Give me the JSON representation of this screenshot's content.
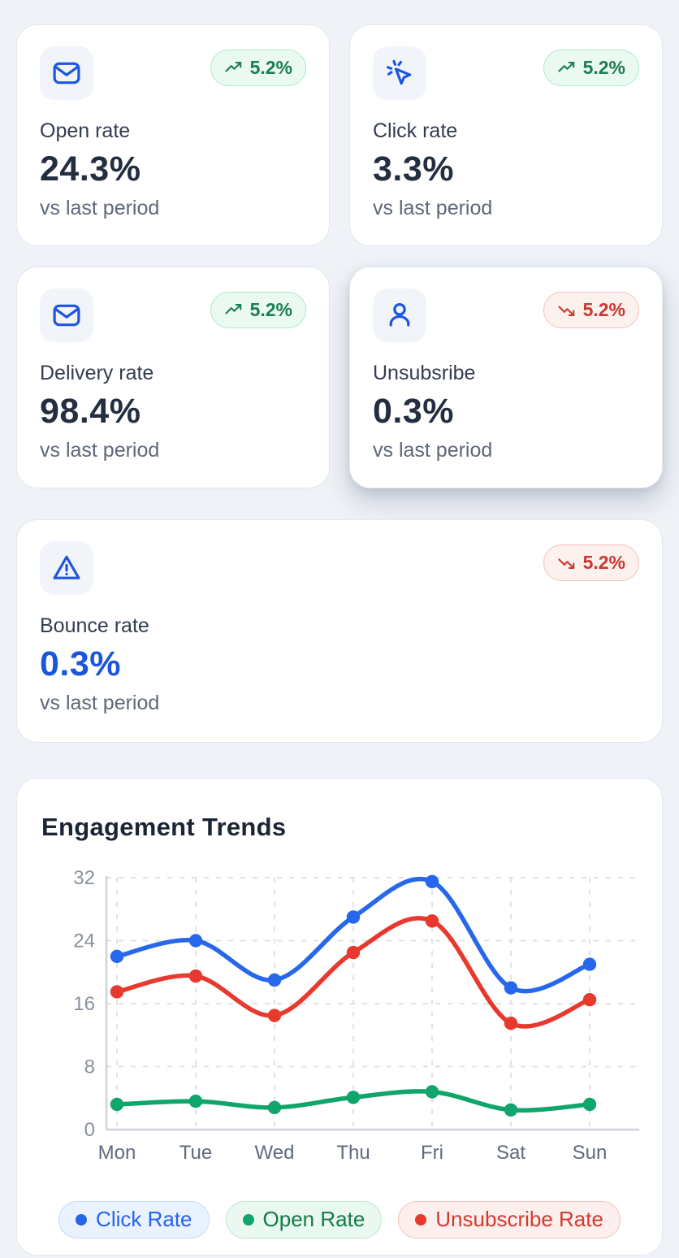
{
  "cards": [
    {
      "label": "Open rate",
      "value": "24.3%",
      "sub": "vs last period",
      "badge": "5.2%",
      "trend": "up"
    },
    {
      "label": "Click rate",
      "value": "3.3%",
      "sub": "vs last period",
      "badge": "5.2%",
      "trend": "up"
    },
    {
      "label": "Delivery rate",
      "value": "98.4%",
      "sub": "vs last period",
      "badge": "5.2%",
      "trend": "up"
    },
    {
      "label": "Unsubsribe",
      "value": "0.3%",
      "sub": "vs last period",
      "badge": "5.2%",
      "trend": "down"
    },
    {
      "label": "Bounce rate",
      "value": "0.3%",
      "sub": "vs last period",
      "badge": "5.2%",
      "trend": "down"
    }
  ],
  "chart": {
    "title": "Engagement Trends",
    "legend": [
      {
        "label": "Click Rate",
        "color": "#2563eb"
      },
      {
        "label": "Open Rate",
        "color": "#10a56a"
      },
      {
        "label": "Unsubscribe Rate",
        "color": "#e8392e"
      }
    ]
  },
  "chart_data": {
    "type": "line",
    "title": "Engagement Trends",
    "categories": [
      "Mon",
      "Tue",
      "Wed",
      "Thu",
      "Fri",
      "Sat",
      "Sun"
    ],
    "series": [
      {
        "name": "Click Rate",
        "color": "#2767ec",
        "values": [
          22,
          24,
          19,
          27,
          31.5,
          18,
          21
        ]
      },
      {
        "name": "Open Rate",
        "color": "#10a56a",
        "values": [
          3.2,
          3.6,
          2.8,
          4.1,
          4.8,
          2.5,
          3.2
        ]
      },
      {
        "name": "Unsubscribe Rate",
        "color": "#e8392e",
        "values": [
          17.5,
          19.5,
          14.5,
          22.5,
          26.5,
          13.5,
          16.5
        ]
      }
    ],
    "xlabel": "",
    "ylabel": "",
    "ylim": [
      0,
      32
    ],
    "yticks": [
      0,
      8,
      16,
      24,
      32
    ],
    "grid": "dashed",
    "legend_position": "bottom"
  },
  "colors": {
    "accent_blue": "#1c55e0",
    "badge_up_text": "#1c7d52",
    "badge_down_text": "#ca382e",
    "page_bg": "#eff2f7"
  }
}
